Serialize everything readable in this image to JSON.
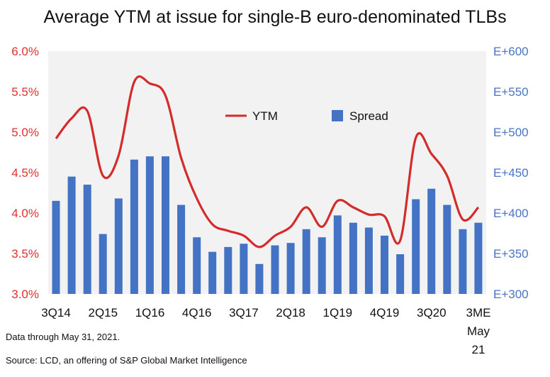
{
  "chart_data": {
    "type": "bar-line-combo",
    "title": "Average YTM at issue for single-B euro-denominated TLBs",
    "x_tick_labels": [
      "3Q14",
      "2Q15",
      "1Q16",
      "4Q16",
      "3Q17",
      "2Q18",
      "1Q19",
      "4Q19",
      "3Q20",
      "3ME"
    ],
    "x_tick_extra": [
      "May",
      "21"
    ],
    "left_axis": {
      "ticks": [
        "3.0%",
        "3.5%",
        "4.0%",
        "4.5%",
        "5.0%",
        "5.5%",
        "6.0%"
      ],
      "range": [
        3.0,
        6.0
      ],
      "color": "#e0302f"
    },
    "right_axis": {
      "ticks": [
        "E+300",
        "E+350",
        "E+400",
        "E+450",
        "E+500",
        "E+550",
        "E+600"
      ],
      "range": [
        300,
        600
      ],
      "color": "#4a74c4"
    },
    "legend": {
      "position": "top-center",
      "ytm_label": "YTM",
      "spread_label": "Spread"
    },
    "series": [
      {
        "name": "YTM",
        "kind": "line",
        "axis": "left",
        "color": "#d42b2b",
        "values": [
          4.92,
          5.17,
          5.26,
          4.46,
          4.71,
          5.62,
          5.6,
          5.45,
          4.68,
          4.18,
          3.86,
          3.78,
          3.72,
          3.58,
          3.72,
          3.83,
          4.07,
          3.83,
          4.15,
          4.07,
          3.98,
          3.96,
          3.66,
          4.93,
          4.73,
          4.46,
          3.92,
          4.07
        ]
      },
      {
        "name": "Spread",
        "kind": "bar",
        "axis": "right",
        "color": "#4472c4",
        "values": [
          415,
          445,
          435,
          374,
          418,
          466,
          470,
          470,
          410,
          370,
          352,
          358,
          362,
          337,
          360,
          363,
          380,
          370,
          397,
          388,
          382,
          372,
          349,
          417,
          430,
          410,
          380,
          388
        ]
      }
    ],
    "grid": false
  },
  "footnote": {
    "data_through": "Data through May 31, 2021.",
    "source": "Source: LCD, an offering of S&P Global Market Intelligence"
  }
}
